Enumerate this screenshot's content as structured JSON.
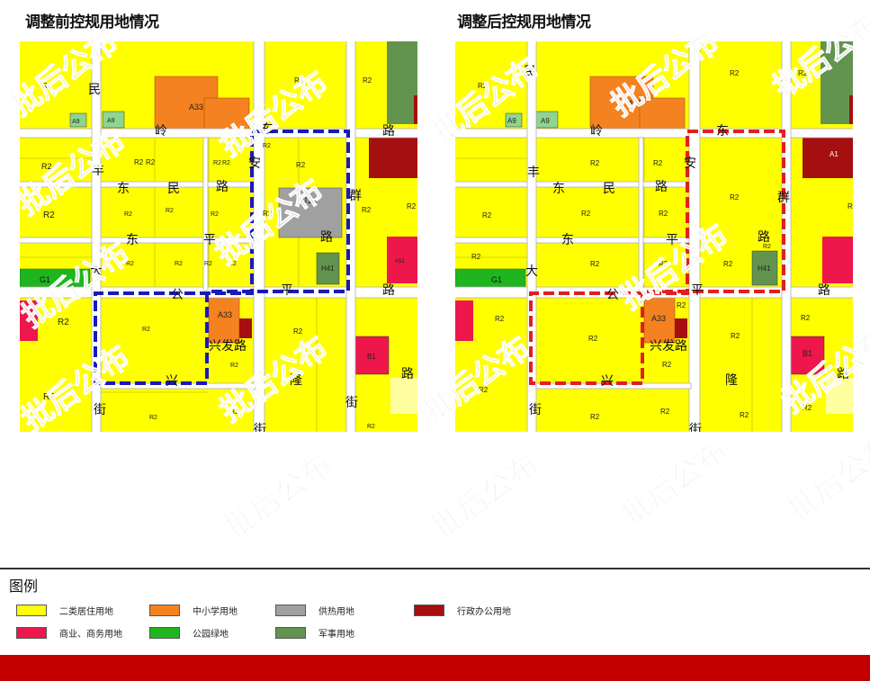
{
  "titles": {
    "before": "调整前控规用地情况",
    "after": "调整后控规用地情况"
  },
  "watermark": "批后公布",
  "colors": {
    "residential": "#ffff00",
    "school": "#f58220",
    "heating": "#a0a0a0",
    "admin": "#a50f0f",
    "commercial": "#ed174c",
    "park": "#1fb51f",
    "military": "#62944f",
    "road": "#ffffff",
    "boundary_before": "#1a1ab8",
    "boundary_after": "#e02020"
  },
  "legend": {
    "title": "图例",
    "items": [
      {
        "label": "二类居住用地",
        "color": "#ffff00"
      },
      {
        "label": "中小学用地",
        "color": "#f58220"
      },
      {
        "label": "供热用地",
        "color": "#a0a0a0"
      },
      {
        "label": "行政办公用地",
        "color": "#a50f0f"
      },
      {
        "label": "商业、商务用地",
        "color": "#ed174c"
      },
      {
        "label": "公园绿地",
        "color": "#1fb51f"
      },
      {
        "label": "军事用地",
        "color": "#62944f"
      }
    ]
  },
  "before_map": {
    "road_chars": [
      "民",
      "岭",
      "东",
      "路",
      "丰",
      "东",
      "民",
      "路",
      "安",
      "群",
      "路",
      "东",
      "平",
      "大",
      "公",
      "平",
      "路",
      "兴",
      "兴发路",
      "隆",
      "街",
      "街",
      "路",
      "街"
    ],
    "parcels": [
      "R2",
      "A33",
      "R2",
      "R2",
      "A9",
      "A9",
      "R2",
      "R2",
      "R2",
      "R2",
      "R2",
      "R2",
      "U14",
      "R2",
      "R2",
      "R2",
      "R2",
      "R2",
      "R2",
      "R2",
      "R2",
      "R2",
      "R2",
      "R2",
      "H41",
      "A51",
      "G1",
      "R2",
      "R2",
      "A33",
      "R2",
      "R2",
      "B1",
      "R2",
      "R2",
      "R2",
      "R2",
      "R2"
    ]
  },
  "after_map": {
    "road_chars": [
      "民",
      "岭",
      "东",
      "丰",
      "东",
      "民",
      "路",
      "安",
      "群",
      "路",
      "东",
      "平",
      "大",
      "公",
      "平",
      "路",
      "兴",
      "兴发路",
      "隆",
      "街",
      "街",
      "路"
    ],
    "parcels": [
      "R2",
      "A33",
      "R2",
      "R2",
      "A9",
      "A9",
      "A1",
      "R2",
      "R2",
      "R2",
      "R2",
      "R2",
      "R2",
      "R2",
      "R2",
      "R2",
      "R2",
      "H41",
      "R2",
      "R2",
      "G1",
      "R2",
      "A33",
      "R2",
      "R2",
      "R2",
      "B1",
      "R2",
      "R2",
      "R2",
      "R2",
      "R2",
      "R2",
      "R2"
    ]
  }
}
